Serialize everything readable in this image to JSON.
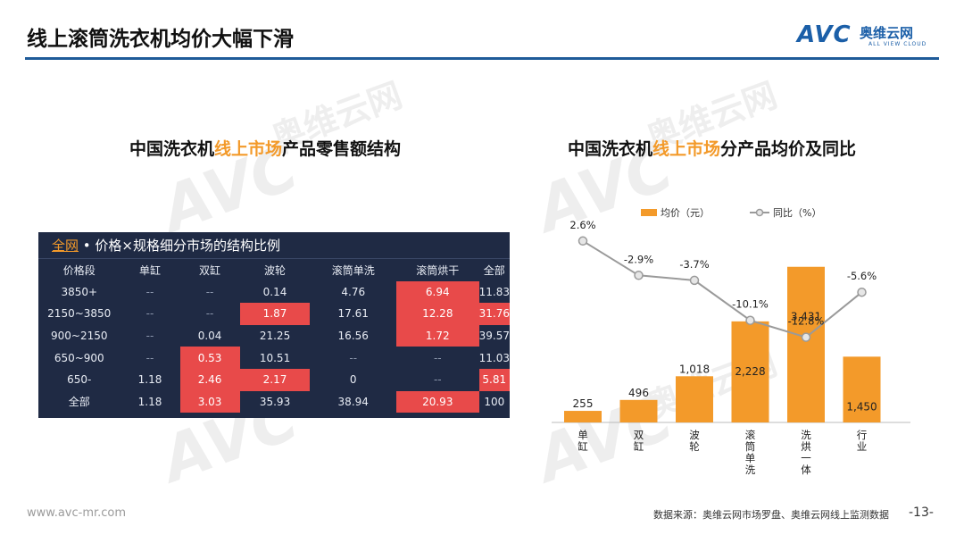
{
  "header": {
    "title": "线上滚筒洗衣机均价大幅下滑",
    "logo_mark": "AVC",
    "logo_cn": "奥维云网",
    "logo_en": "ALL VIEW CLOUD"
  },
  "watermark": {
    "mark": "AVC",
    "cn": "奥维云网",
    "en": "ALL VIEW CLOUD"
  },
  "left_panel": {
    "title_pre": "中国洗衣机",
    "title_hl": "线上市场",
    "title_post": "产品零售额结构",
    "table_header_accent": "全网",
    "table_header_rest": " • 价格×规格细分市场的结构比例",
    "columns": [
      "价格段",
      "单缸",
      "双缸",
      "波轮",
      "滚筒单洗",
      "滚筒烘干",
      "全部"
    ],
    "rows": [
      [
        "3850+",
        "--",
        "--",
        "0.14",
        "4.76",
        "6.94",
        "11.83"
      ],
      [
        "2150~3850",
        "--",
        "--",
        "1.87",
        "17.61",
        "12.28",
        "31.76"
      ],
      [
        "900~2150",
        "--",
        "0.04",
        "21.25",
        "16.56",
        "1.72",
        "39.57"
      ],
      [
        "650~900",
        "--",
        "0.53",
        "10.51",
        "--",
        "--",
        "11.03"
      ],
      [
        "650-",
        "1.18",
        "2.46",
        "2.17",
        "0",
        "--",
        "5.81"
      ],
      [
        "全部",
        "1.18",
        "3.03",
        "35.93",
        "38.94",
        "20.93",
        "100"
      ]
    ],
    "highlighted_cells": [
      [
        0,
        5
      ],
      [
        1,
        3
      ],
      [
        1,
        5
      ],
      [
        1,
        6
      ],
      [
        2,
        5
      ],
      [
        3,
        2
      ],
      [
        4,
        2
      ],
      [
        4,
        3
      ],
      [
        4,
        6
      ],
      [
        5,
        2
      ],
      [
        5,
        5
      ]
    ],
    "highlight_color": "#e84a4a"
  },
  "right_panel": {
    "title_pre": "中国洗衣机",
    "title_hl": "线上市场",
    "title_post": "分产品均价及同比"
  },
  "chart_data": {
    "type": "bar",
    "categories": [
      "单缸",
      "双缸",
      "波轮",
      "滚筒单洗",
      "洗烘一体",
      "行业"
    ],
    "series": [
      {
        "name": "均价（元）",
        "type": "bar",
        "values": [
          255,
          496,
          1018,
          2228,
          3431,
          1450
        ],
        "labels": [
          "255",
          "496",
          "1,018",
          "2,228",
          "3,431",
          "1,450"
        ],
        "color": "#f39a2a"
      },
      {
        "name": "同比（%）",
        "type": "line",
        "values": [
          2.6,
          -2.9,
          -3.7,
          -10.1,
          -12.8,
          -5.6
        ],
        "labels": [
          "2.6%",
          "-2.9%",
          "-3.7%",
          "-10.1%",
          "-12.8%",
          "-5.6%"
        ],
        "color": "#9a9a9a"
      }
    ],
    "bar_ylim": [
      0,
      3800
    ],
    "line_ylim": [
      -16,
      4
    ],
    "legend_position": "top"
  },
  "footer": {
    "url": "www.avc-mr.com",
    "source": "数据来源：奥维云网市场罗盘、奥维云网线上监测数据",
    "page": "-13-"
  }
}
